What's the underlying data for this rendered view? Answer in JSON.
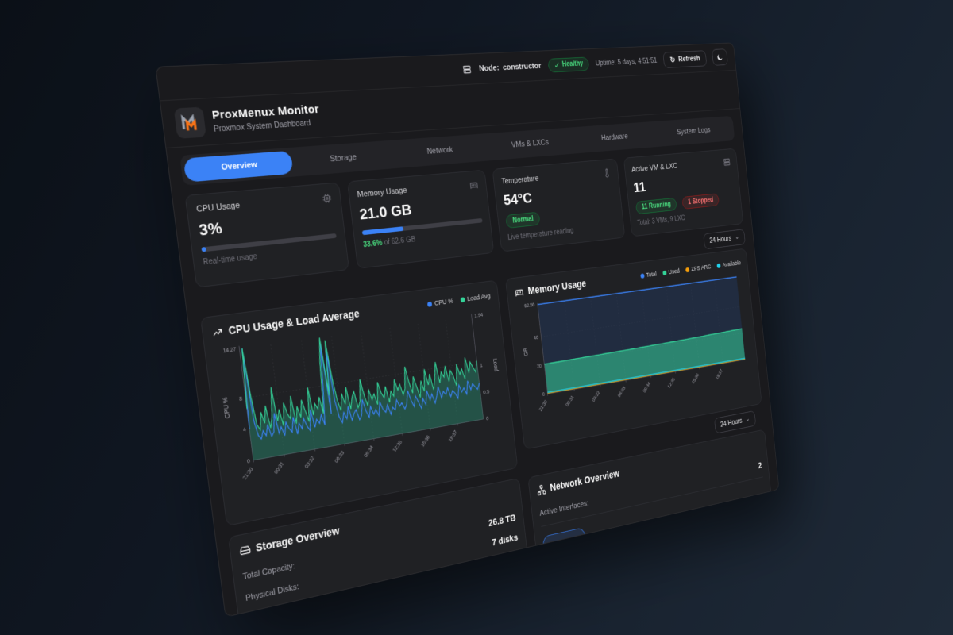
{
  "topbar": {
    "node_label": "Node:",
    "node_value": "constructor",
    "health_label": "Healthy",
    "uptime": "Uptime: 5 days, 4:51:51",
    "refresh_label": "Refresh"
  },
  "icons": {
    "refresh": "↻",
    "chevron_down": "⌄",
    "check": "✓"
  },
  "header": {
    "title": "ProxMenux Monitor",
    "subtitle": "Proxmox System Dashboard"
  },
  "tabs": [
    {
      "label": "Overview",
      "active": true
    },
    {
      "label": "Storage",
      "active": false
    },
    {
      "label": "Network",
      "active": false
    },
    {
      "label": "VMs & LXCs",
      "active": false
    },
    {
      "label": "Hardware",
      "active": false
    },
    {
      "label": "System Logs",
      "active": false
    }
  ],
  "stats": {
    "cpu": {
      "label": "CPU Usage",
      "value": "3%",
      "percent": 3,
      "sub": "Real-time usage"
    },
    "memory": {
      "label": "Memory Usage",
      "value": "21.0 GB",
      "percent": 33.6,
      "sub_highlight": "33.6%",
      "sub_rest": " of 62.6 GB"
    },
    "temperature": {
      "label": "Temperature",
      "value": "54°C",
      "badge": "Normal",
      "sub": "Live temperature reading"
    },
    "vm": {
      "label": "Active VM & LXC",
      "value": "11",
      "badge_running": "11 Running",
      "badge_stopped": "1 Stopped",
      "sub": "Total: 3 VMs, 9 LXC"
    }
  },
  "range_top": {
    "label": "24 Hours"
  },
  "range_bottom": {
    "label": "24 Hours"
  },
  "chart_data": [
    {
      "type": "area",
      "title": "CPU Usage & Load Average",
      "x_ticks": [
        "21:30",
        "00:31",
        "03:32",
        "06:33",
        "09:34",
        "12:35",
        "15:36",
        "18:37"
      ],
      "y_left": {
        "label": "CPU %",
        "ticks": [
          0,
          4,
          8
        ],
        "max": 14.27,
        "max_label": "14.27"
      },
      "y_right": {
        "label": "Load",
        "ticks": [
          0,
          0.5,
          1
        ],
        "max": 1.94,
        "max_label": "1.94"
      },
      "series": [
        {
          "name": "CPU %",
          "color": "#3b82f6",
          "axis": "left",
          "values": [
            4.0,
            14.27,
            5.0,
            3.0,
            2.5,
            3.5,
            2.8,
            4.2,
            2.6,
            3.1,
            5.5,
            2.8,
            3.6,
            2.4,
            4.1,
            3.2,
            2.7,
            4.6,
            2.3,
            3.7,
            2.9,
            4.2,
            3.1,
            2.5,
            5.2,
            2.8,
            3.8,
            3.2,
            4.3,
            2.9,
            7.5,
            13.5,
            4.2,
            12.8,
            5.8,
            3.6,
            2.8,
            4.1,
            3.2,
            4.8,
            2.9,
            3.7,
            4.2,
            2.8,
            3.3,
            5.4,
            3.8,
            2.9,
            4.3,
            3.2,
            3.8,
            2.9,
            4.7,
            3.6,
            3.2,
            4.2,
            2.8,
            3.7,
            3.3,
            4.6,
            3.7,
            4.1,
            3.2,
            3.8,
            5.6,
            4.2,
            3.3,
            4.7,
            3.8,
            2.9,
            4.2,
            3.3,
            5.2,
            3.8,
            4.6,
            3.3,
            4.2,
            5.5,
            3.8,
            4.7,
            4.2,
            5.1,
            3.8,
            4.6,
            4.2,
            3.4,
            5.2,
            4.2,
            4.7,
            3.8,
            5.6,
            4.3,
            5.1,
            4.6,
            4.2,
            5.0
          ]
        },
        {
          "name": "Load Avg",
          "color": "#34d399",
          "axis": "right",
          "fill": "rgba(45,212,160,0.28)",
          "values": [
            0.9,
            1.94,
            1.1,
            0.6,
            0.5,
            0.8,
            0.6,
            0.9,
            0.5,
            0.7,
            1.2,
            0.6,
            0.8,
            0.5,
            0.9,
            0.7,
            0.6,
            1.0,
            0.5,
            0.8,
            0.6,
            0.9,
            0.7,
            0.5,
            1.1,
            0.6,
            0.8,
            0.7,
            0.9,
            0.6,
            1.5,
            1.94,
            0.9,
            1.88,
            1.2,
            0.8,
            0.6,
            0.9,
            0.7,
            1.0,
            0.6,
            0.8,
            0.9,
            0.6,
            0.7,
            1.1,
            0.8,
            0.6,
            0.9,
            0.7,
            0.8,
            0.6,
            1.0,
            0.8,
            0.7,
            0.9,
            0.6,
            0.8,
            0.7,
            1.0,
            0.8,
            0.9,
            0.7,
            0.8,
            1.2,
            0.9,
            0.7,
            1.0,
            0.8,
            0.6,
            0.9,
            0.7,
            1.1,
            0.8,
            1.0,
            0.7,
            0.9,
            1.2,
            0.8,
            1.0,
            0.9,
            1.1,
            0.8,
            1.0,
            0.9,
            0.7,
            1.1,
            0.9,
            1.0,
            0.8,
            1.2,
            0.9,
            1.1,
            1.0,
            0.9,
            1.1
          ]
        }
      ]
    },
    {
      "type": "area",
      "title": "Memory Usage",
      "x_ticks": [
        "21:30",
        "00:31",
        "03:32",
        "06:33",
        "09:34",
        "12:35",
        "15:36",
        "18:37"
      ],
      "y": {
        "label": "GB",
        "ticks": [
          0,
          20,
          40
        ],
        "max": 62.56,
        "max_label": "62.56"
      },
      "series": [
        {
          "name": "Total",
          "color": "#3b82f6",
          "fill": "#212c40",
          "const": 62.56
        },
        {
          "name": "Used",
          "color": "#34d399",
          "fill": "#2c8570",
          "keypoints": [
            20.8,
            21.0,
            21.2,
            21.5,
            21.8,
            22.2,
            22.8,
            23.4
          ]
        },
        {
          "name": "ZFS ARC",
          "color": "#f59e0b",
          "const": 0.3
        },
        {
          "name": "Available",
          "color": "#22d3ee",
          "const": 1.0
        }
      ]
    }
  ],
  "storage": {
    "title": "Storage Overview",
    "rows": [
      {
        "label": "Total Capacity:",
        "value": "26.8 TB"
      },
      {
        "label": "Physical Disks:",
        "value": "7 disks"
      }
    ]
  },
  "network": {
    "title": "Network Overview",
    "rows": [
      {
        "label": "Active Interfaces:",
        "value": "2"
      }
    ]
  },
  "colors": {
    "accent": "#3b82f6",
    "success": "#4ade80",
    "danger": "#f87171",
    "warning": "#f59e0b",
    "cyan": "#22d3ee",
    "chart_green": "#34d399"
  }
}
